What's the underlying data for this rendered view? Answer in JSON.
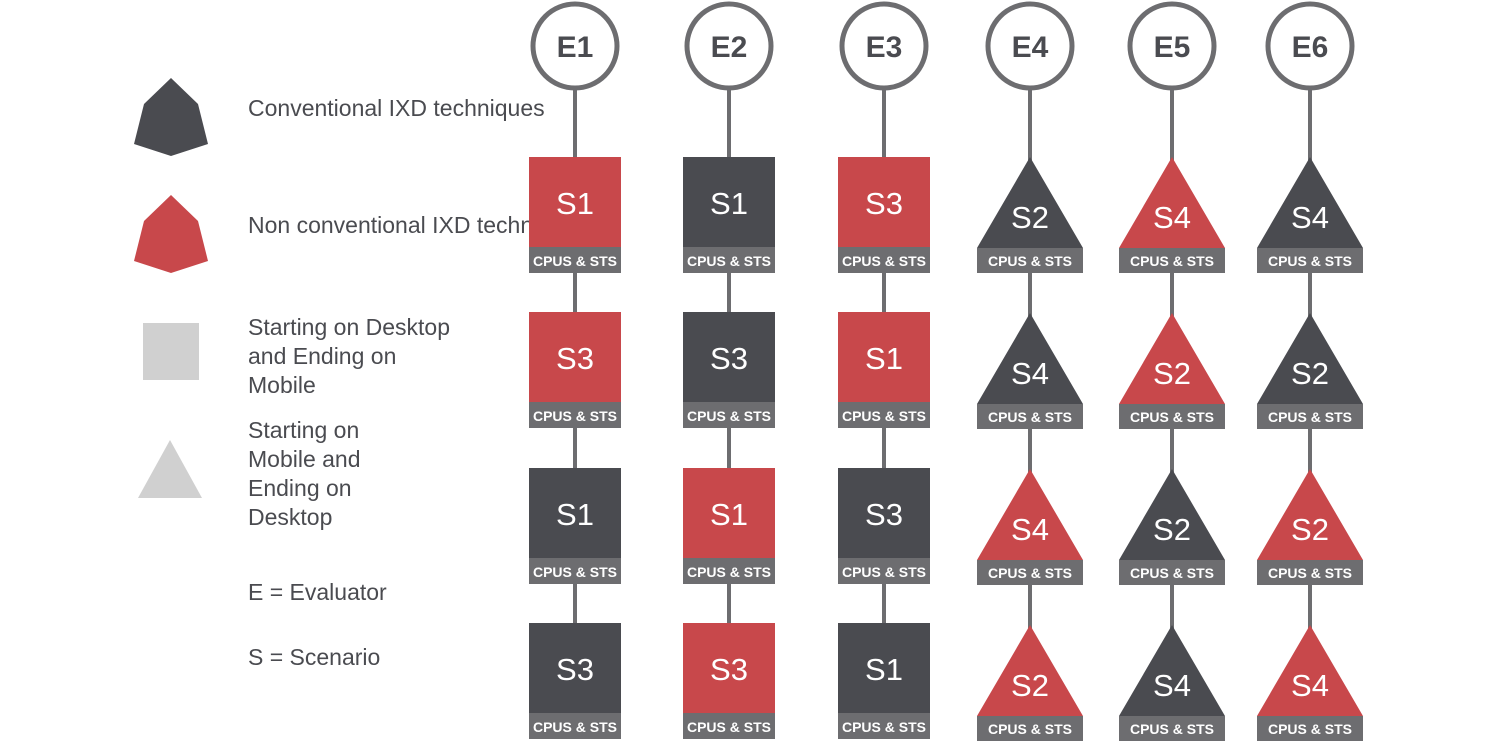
{
  "legend": {
    "conventional": "Conventional IXD techniques",
    "non_conventional": "Non conventional IXD techniques",
    "desktop_to_mobile": "Starting on Desktop and Ending on Mobile",
    "mobile_to_desktop": "Starting on Mobile and Ending on Desktop",
    "evaluator_key": "E = Evaluator",
    "scenario_key": "S = Scenario"
  },
  "colors": {
    "dark": "#4a4b50",
    "red": "#c8484b",
    "label_bar": "#6d6d70",
    "light_gray": "#d0d0d0",
    "line": "#6d6d70"
  },
  "evaluators": [
    {
      "label": "E1",
      "shape": "square",
      "steps": [
        {
          "scenario": "S1",
          "tech": "non-conventional",
          "label": "CPUS & STS"
        },
        {
          "scenario": "S3",
          "tech": "non-conventional",
          "label": "CPUS & STS"
        },
        {
          "scenario": "S1",
          "tech": "conventional",
          "label": "CPUS & STS"
        },
        {
          "scenario": "S3",
          "tech": "conventional",
          "label": "CPUS & STS"
        }
      ]
    },
    {
      "label": "E2",
      "shape": "square",
      "steps": [
        {
          "scenario": "S1",
          "tech": "conventional",
          "label": "CPUS & STS"
        },
        {
          "scenario": "S3",
          "tech": "conventional",
          "label": "CPUS & STS"
        },
        {
          "scenario": "S1",
          "tech": "non-conventional",
          "label": "CPUS & STS"
        },
        {
          "scenario": "S3",
          "tech": "non-conventional",
          "label": "CPUS & STS"
        }
      ]
    },
    {
      "label": "E3",
      "shape": "square",
      "steps": [
        {
          "scenario": "S3",
          "tech": "non-conventional",
          "label": "CPUS & STS"
        },
        {
          "scenario": "S1",
          "tech": "non-conventional",
          "label": "CPUS & STS"
        },
        {
          "scenario": "S3",
          "tech": "conventional",
          "label": "CPUS & STS"
        },
        {
          "scenario": "S1",
          "tech": "conventional",
          "label": "CPUS & STS"
        }
      ]
    },
    {
      "label": "E4",
      "shape": "triangle",
      "steps": [
        {
          "scenario": "S2",
          "tech": "conventional",
          "label": "CPUS & STS"
        },
        {
          "scenario": "S4",
          "tech": "conventional",
          "label": "CPUS & STS"
        },
        {
          "scenario": "S4",
          "tech": "non-conventional",
          "label": "CPUS & STS"
        },
        {
          "scenario": "S2",
          "tech": "non-conventional",
          "label": "CPUS & STS"
        }
      ]
    },
    {
      "label": "E5",
      "shape": "triangle",
      "steps": [
        {
          "scenario": "S4",
          "tech": "non-conventional",
          "label": "CPUS & STS"
        },
        {
          "scenario": "S2",
          "tech": "non-conventional",
          "label": "CPUS & STS"
        },
        {
          "scenario": "S2",
          "tech": "conventional",
          "label": "CPUS & STS"
        },
        {
          "scenario": "S4",
          "tech": "conventional",
          "label": "CPUS & STS"
        }
      ]
    },
    {
      "label": "E6",
      "shape": "triangle",
      "steps": [
        {
          "scenario": "S4",
          "tech": "conventional",
          "label": "CPUS & STS"
        },
        {
          "scenario": "S2",
          "tech": "conventional",
          "label": "CPUS & STS"
        },
        {
          "scenario": "S2",
          "tech": "non-conventional",
          "label": "CPUS & STS"
        },
        {
          "scenario": "S4",
          "tech": "non-conventional",
          "label": "CPUS & STS"
        }
      ]
    }
  ]
}
